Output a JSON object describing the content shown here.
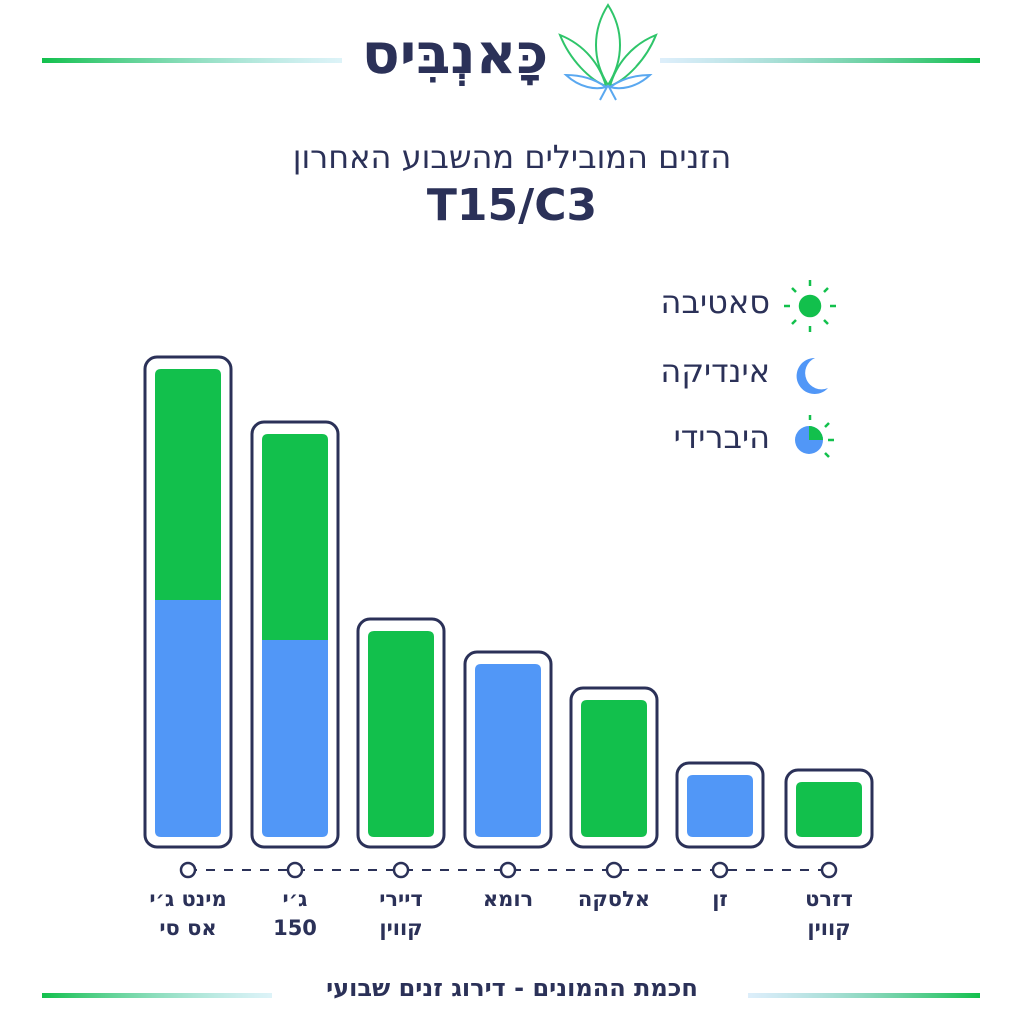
{
  "header": {
    "logo": "כָּאנְבִּיס",
    "title": "הזנים המובילים מהשבוע האחרון",
    "subtitle": "T15/C3"
  },
  "chart_data": {
    "type": "bar",
    "stacked": true,
    "categories": [
      "מינט ג׳י\nאס סי",
      "ג׳י\n150",
      "דיירי\nקווין",
      "רומא",
      "אלסקה",
      "זן",
      "דזרט\nקווין"
    ],
    "series": [
      {
        "name": "אינדיקה",
        "color": "#5197f7",
        "values": [
          237,
          197,
          null,
          173,
          null,
          62,
          null
        ]
      },
      {
        "name": "סאטיבה",
        "color": "#12c04c",
        "values": [
          231,
          206,
          206,
          null,
          137,
          null,
          55
        ]
      }
    ],
    "hybrid": "היברידי"
  },
  "footer": "חכמת ההמונים - דירוג זנים שבועי"
}
